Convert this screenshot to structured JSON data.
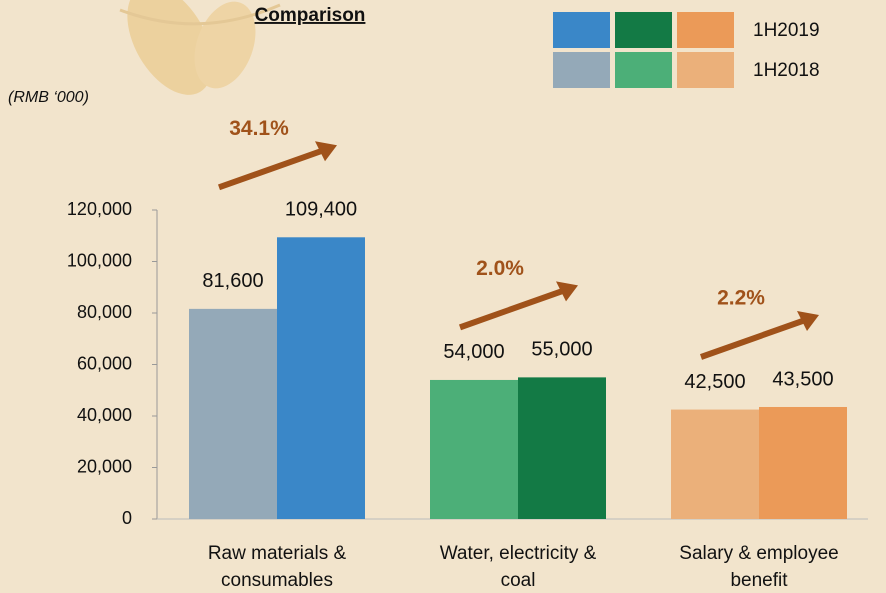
{
  "chart_data": {
    "type": "bar",
    "title": "Comparison",
    "unit": "(RMB ‘000)",
    "categories": [
      "Raw materials & consumables",
      "Water, electricity & coal",
      "Salary & employee benefit"
    ],
    "series": [
      {
        "name": "1H2018",
        "colors": [
          "#94a9b8",
          "#4caf78",
          "#ebb07a"
        ],
        "values": [
          81600,
          54000,
          42500
        ],
        "value_labels": [
          "81,600",
          "54,000",
          "42,500"
        ]
      },
      {
        "name": "1H2019",
        "colors": [
          "#3a87c8",
          "#137a45",
          "#eb9a58"
        ],
        "values": [
          109400,
          55000,
          43500
        ],
        "value_labels": [
          "109,400",
          "55,000",
          "43,500"
        ]
      }
    ],
    "annotations": [
      "34.1%",
      "2.0%",
      "2.2%"
    ],
    "annotation_color": "#a0521a",
    "ylim": [
      0,
      120000
    ],
    "yticks": [
      0,
      {
        "value": 20000,
        "label": "20,000"
      },
      {
        "value": 40000,
        "label": "40,000"
      },
      {
        "value": 60000,
        "label": "60,000"
      },
      {
        "value": 80000,
        "label": "80,000"
      },
      {
        "value": 100000,
        "label": "100,000"
      },
      {
        "value": 120000,
        "label": "120,000"
      }
    ]
  }
}
